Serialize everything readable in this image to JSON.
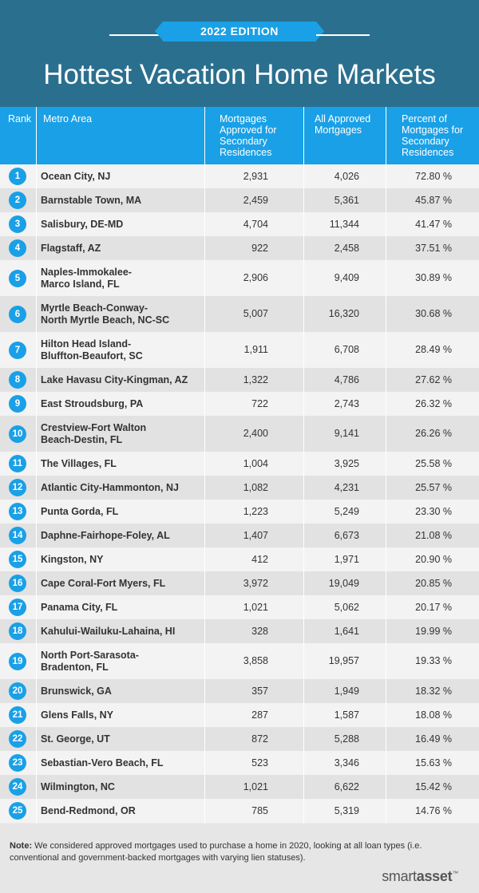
{
  "header": {
    "edition": "2022 EDITION",
    "title": "Hottest Vacation Home Markets"
  },
  "columns": {
    "rank": "Rank",
    "metro": "Metro Area",
    "secondary": "Mortgages Approved for Secondary Residences",
    "all": "All Approved Mortgages",
    "percent": "Percent of Mortgages for Secondary Residences"
  },
  "rows": [
    {
      "rank": "1",
      "metro": [
        "Ocean City, NJ"
      ],
      "secondary": "2,931",
      "all": "4,026",
      "percent": "72.80 %"
    },
    {
      "rank": "2",
      "metro": [
        "Barnstable Town, MA"
      ],
      "secondary": "2,459",
      "all": "5,361",
      "percent": "45.87 %"
    },
    {
      "rank": "3",
      "metro": [
        "Salisbury, DE-MD"
      ],
      "secondary": "4,704",
      "all": "11,344",
      "percent": "41.47 %"
    },
    {
      "rank": "4",
      "metro": [
        "Flagstaff, AZ"
      ],
      "secondary": "922",
      "all": "2,458",
      "percent": "37.51 %"
    },
    {
      "rank": "5",
      "metro": [
        "Naples-Immokalee-",
        "Marco Island, FL"
      ],
      "secondary": "2,906",
      "all": "9,409",
      "percent": "30.89 %"
    },
    {
      "rank": "6",
      "metro": [
        "Myrtle Beach-Conway-",
        "North Myrtle Beach, NC-SC"
      ],
      "secondary": "5,007",
      "all": "16,320",
      "percent": "30.68 %"
    },
    {
      "rank": "7",
      "metro": [
        "Hilton Head Island-",
        "Bluffton-Beaufort, SC"
      ],
      "secondary": "1,911",
      "all": "6,708",
      "percent": "28.49 %"
    },
    {
      "rank": "8",
      "metro": [
        "Lake Havasu City-Kingman, AZ"
      ],
      "secondary": "1,322",
      "all": "4,786",
      "percent": "27.62 %"
    },
    {
      "rank": "9",
      "metro": [
        "East Stroudsburg, PA"
      ],
      "secondary": "722",
      "all": "2,743",
      "percent": "26.32 %"
    },
    {
      "rank": "10",
      "metro": [
        "Crestview-Fort Walton",
        "Beach-Destin, FL"
      ],
      "secondary": "2,400",
      "all": "9,141",
      "percent": "26.26 %"
    },
    {
      "rank": "11",
      "metro": [
        "The Villages, FL"
      ],
      "secondary": "1,004",
      "all": "3,925",
      "percent": "25.58 %"
    },
    {
      "rank": "12",
      "metro": [
        "Atlantic City-Hammonton, NJ"
      ],
      "secondary": "1,082",
      "all": "4,231",
      "percent": "25.57 %"
    },
    {
      "rank": "13",
      "metro": [
        "Punta Gorda, FL"
      ],
      "secondary": "1,223",
      "all": "5,249",
      "percent": "23.30 %"
    },
    {
      "rank": "14",
      "metro": [
        "Daphne-Fairhope-Foley, AL"
      ],
      "secondary": "1,407",
      "all": "6,673",
      "percent": "21.08 %"
    },
    {
      "rank": "15",
      "metro": [
        "Kingston, NY"
      ],
      "secondary": "412",
      "all": "1,971",
      "percent": "20.90 %"
    },
    {
      "rank": "16",
      "metro": [
        "Cape Coral-Fort Myers, FL"
      ],
      "secondary": "3,972",
      "all": "19,049",
      "percent": "20.85 %"
    },
    {
      "rank": "17",
      "metro": [
        "Panama City, FL"
      ],
      "secondary": "1,021",
      "all": "5,062",
      "percent": "20.17 %"
    },
    {
      "rank": "18",
      "metro": [
        "Kahului-Wailuku-Lahaina, HI"
      ],
      "secondary": "328",
      "all": "1,641",
      "percent": "19.99 %"
    },
    {
      "rank": "19",
      "metro": [
        "North Port-Sarasota-",
        "Bradenton, FL"
      ],
      "secondary": "3,858",
      "all": "19,957",
      "percent": "19.33 %"
    },
    {
      "rank": "20",
      "metro": [
        "Brunswick, GA"
      ],
      "secondary": "357",
      "all": "1,949",
      "percent": "18.32 %"
    },
    {
      "rank": "21",
      "metro": [
        "Glens Falls, NY"
      ],
      "secondary": "287",
      "all": "1,587",
      "percent": "18.08 %"
    },
    {
      "rank": "22",
      "metro": [
        "St. George, UT"
      ],
      "secondary": "872",
      "all": "5,288",
      "percent": "16.49 %"
    },
    {
      "rank": "23",
      "metro": [
        "Sebastian-Vero Beach, FL"
      ],
      "secondary": "523",
      "all": "3,346",
      "percent": "15.63 %"
    },
    {
      "rank": "24",
      "metro": [
        "Wilmington, NC"
      ],
      "secondary": "1,021",
      "all": "6,622",
      "percent": "15.42 %"
    },
    {
      "rank": "25",
      "metro": [
        "Bend-Redmond, OR"
      ],
      "secondary": "785",
      "all": "5,319",
      "percent": "14.76 %"
    }
  ],
  "footer": {
    "note_label": "Note:",
    "note_text": " We considered approved mortgages used to purchase a home in 2020, looking at all loan types (i.e. conventional and government-backed mortgages with varying lien statuses).",
    "brand_smart": "smart",
    "brand_asset": "asset",
    "brand_mark": "™"
  }
}
